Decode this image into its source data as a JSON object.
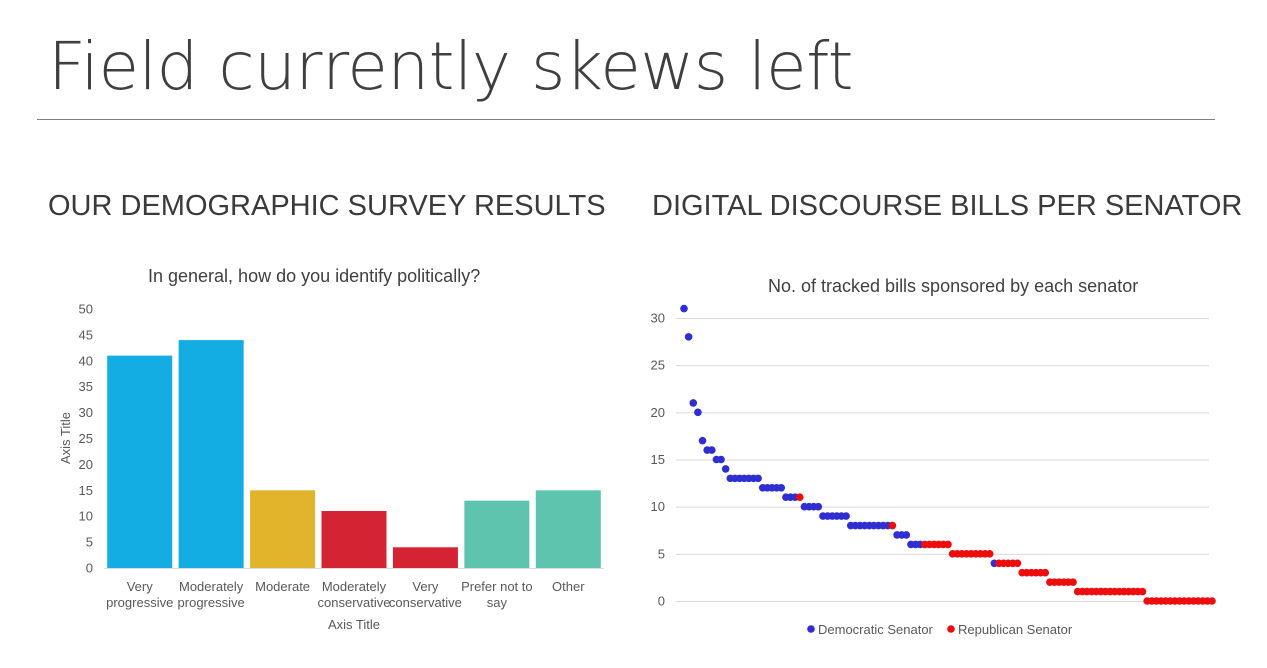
{
  "slide": {
    "title": "Field currently skews left",
    "left_heading": "OUR DEMOGRAPHIC SURVEY RESULTS",
    "right_heading": "DIGITAL DISCOURSE BILLS PER SENATOR"
  },
  "chart_data": [
    {
      "type": "bar",
      "title": "In general, how do you identify politically?",
      "xlabel": "Axis Title",
      "ylabel": "Axis Title",
      "ylim": [
        0,
        50
      ],
      "yticks": [
        0,
        5,
        10,
        15,
        20,
        25,
        30,
        35,
        40,
        45,
        50
      ],
      "categories": [
        [
          "Very",
          "progressive"
        ],
        [
          "Moderately",
          "progressive"
        ],
        [
          "Moderate"
        ],
        [
          "Moderately",
          "conservative"
        ],
        [
          "Very",
          "conservative"
        ],
        [
          "Prefer not to",
          "say"
        ],
        [
          "Other"
        ]
      ],
      "values": [
        41,
        44,
        15,
        11,
        4,
        13,
        15
      ],
      "colors": [
        "#13ade3",
        "#13ade3",
        "#e1b42c",
        "#d42433",
        "#d42433",
        "#5ec4ae",
        "#5ec4ae"
      ],
      "grid": false
    },
    {
      "type": "scatter",
      "title": "No. of tracked bills sponsored by each senator",
      "ylim": [
        0,
        30
      ],
      "yticks": [
        0,
        5,
        10,
        15,
        20,
        25,
        30
      ],
      "grid": true,
      "legend_position": "bottom",
      "series": [
        {
          "name": "Democratic Senator",
          "color": "#2e2ed1"
        },
        {
          "name": "Republican Senator",
          "color": "#ee0d0d"
        }
      ],
      "points": [
        [
          "D",
          31
        ],
        [
          "D",
          28
        ],
        [
          "D",
          21
        ],
        [
          "D",
          20
        ],
        [
          "D",
          17
        ],
        [
          "D",
          16
        ],
        [
          "D",
          16
        ],
        [
          "D",
          15
        ],
        [
          "D",
          15
        ],
        [
          "D",
          14
        ],
        [
          "D",
          13
        ],
        [
          "D",
          13
        ],
        [
          "D",
          13
        ],
        [
          "D",
          13
        ],
        [
          "D",
          13
        ],
        [
          "D",
          13
        ],
        [
          "D",
          13
        ],
        [
          "D",
          12
        ],
        [
          "D",
          12
        ],
        [
          "D",
          12
        ],
        [
          "D",
          12
        ],
        [
          "D",
          12
        ],
        [
          "D",
          11
        ],
        [
          "D",
          11
        ],
        [
          "D",
          11
        ],
        [
          "R",
          11
        ],
        [
          "D",
          10
        ],
        [
          "D",
          10
        ],
        [
          "D",
          10
        ],
        [
          "D",
          10
        ],
        [
          "D",
          9
        ],
        [
          "D",
          9
        ],
        [
          "D",
          9
        ],
        [
          "D",
          9
        ],
        [
          "D",
          9
        ],
        [
          "D",
          9
        ],
        [
          "D",
          8
        ],
        [
          "D",
          8
        ],
        [
          "D",
          8
        ],
        [
          "D",
          8
        ],
        [
          "D",
          8
        ],
        [
          "D",
          8
        ],
        [
          "D",
          8
        ],
        [
          "D",
          8
        ],
        [
          "D",
          8
        ],
        [
          "R",
          8
        ],
        [
          "D",
          7
        ],
        [
          "D",
          7
        ],
        [
          "D",
          7
        ],
        [
          "D",
          6
        ],
        [
          "D",
          6
        ],
        [
          "D",
          6
        ],
        [
          "R",
          6
        ],
        [
          "R",
          6
        ],
        [
          "R",
          6
        ],
        [
          "R",
          6
        ],
        [
          "R",
          6
        ],
        [
          "R",
          6
        ],
        [
          "R",
          5
        ],
        [
          "R",
          5
        ],
        [
          "R",
          5
        ],
        [
          "R",
          5
        ],
        [
          "R",
          5
        ],
        [
          "R",
          5
        ],
        [
          "R",
          5
        ],
        [
          "R",
          5
        ],
        [
          "R",
          5
        ],
        [
          "D",
          4
        ],
        [
          "R",
          4
        ],
        [
          "R",
          4
        ],
        [
          "R",
          4
        ],
        [
          "R",
          4
        ],
        [
          "R",
          4
        ],
        [
          "R",
          3
        ],
        [
          "R",
          3
        ],
        [
          "R",
          3
        ],
        [
          "R",
          3
        ],
        [
          "R",
          3
        ],
        [
          "R",
          3
        ],
        [
          "R",
          2
        ],
        [
          "R",
          2
        ],
        [
          "R",
          2
        ],
        [
          "R",
          2
        ],
        [
          "R",
          2
        ],
        [
          "R",
          2
        ],
        [
          "R",
          1
        ],
        [
          "R",
          1
        ],
        [
          "R",
          1
        ],
        [
          "R",
          1
        ],
        [
          "R",
          1
        ],
        [
          "R",
          1
        ],
        [
          "R",
          1
        ],
        [
          "R",
          1
        ],
        [
          "R",
          1
        ],
        [
          "R",
          1
        ],
        [
          "R",
          1
        ],
        [
          "R",
          1
        ],
        [
          "R",
          1
        ],
        [
          "R",
          1
        ],
        [
          "R",
          1
        ],
        [
          "R",
          0
        ],
        [
          "R",
          0
        ],
        [
          "R",
          0
        ],
        [
          "R",
          0
        ],
        [
          "R",
          0
        ],
        [
          "R",
          0
        ],
        [
          "R",
          0
        ],
        [
          "R",
          0
        ],
        [
          "R",
          0
        ],
        [
          "R",
          0
        ],
        [
          "R",
          0
        ],
        [
          "R",
          0
        ],
        [
          "R",
          0
        ],
        [
          "R",
          0
        ],
        [
          "R",
          0
        ]
      ]
    }
  ]
}
